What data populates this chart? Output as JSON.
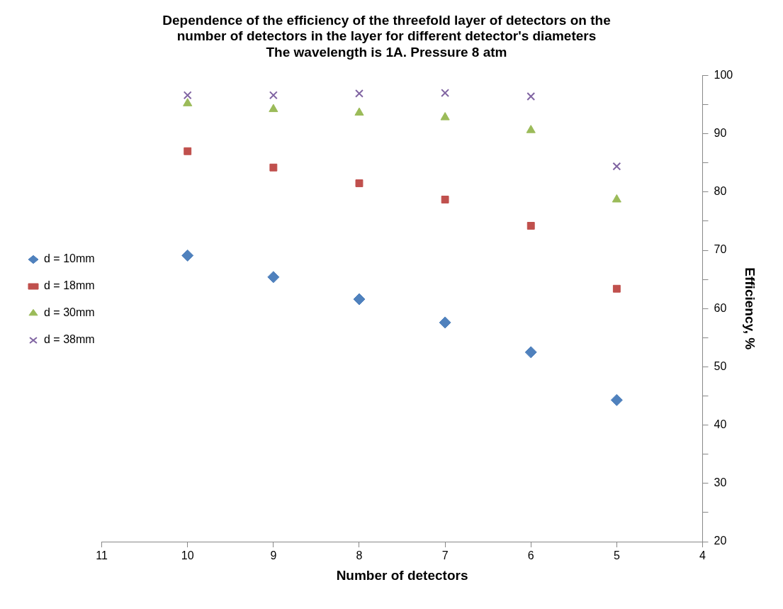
{
  "chart_data": {
    "type": "scatter",
    "title": "Dependence of the efficiency of the threefold layer of detectors on the\nnumber of detectors in the layer for different detector's diameters\nThe wavelength is 1A. Pressure 8 atm",
    "xlabel": "Number of detectors",
    "ylabel": "Efficiency, %",
    "x": [
      10,
      9,
      8,
      7,
      6,
      5
    ],
    "series": [
      {
        "name": "d = 10mm",
        "color": "#4f81bd",
        "marker": "diamond",
        "values": [
          69.1,
          65.4,
          61.6,
          57.6,
          52.5,
          44.3
        ]
      },
      {
        "name": "d = 18mm",
        "color": "#c0504d",
        "marker": "square",
        "values": [
          87.0,
          84.2,
          81.5,
          78.7,
          74.2,
          63.4
        ]
      },
      {
        "name": "d = 30mm",
        "color": "#9bbb59",
        "marker": "triangle",
        "values": [
          95.2,
          94.2,
          93.6,
          92.8,
          90.6,
          78.7
        ]
      },
      {
        "name": "d = 38mm",
        "color": "#8064a2",
        "marker": "cross",
        "values": [
          96.6,
          96.6,
          96.9,
          97.0,
          96.4,
          84.4
        ]
      }
    ],
    "xlim": [
      11,
      4
    ],
    "xticks": [
      11,
      10,
      9,
      8,
      7,
      6,
      5,
      4
    ],
    "ylim": [
      20,
      100
    ],
    "yticks": [
      20,
      {
        "value": 25,
        "label": null
      },
      30,
      {
        "value": 35,
        "label": null
      },
      40,
      {
        "value": 45,
        "label": null
      },
      50,
      {
        "value": 55,
        "label": null
      },
      60,
      {
        "value": 65,
        "label": null
      },
      70,
      {
        "value": 75,
        "label": null
      },
      80,
      {
        "value": 85,
        "label": null
      },
      90,
      {
        "value": 95,
        "label": null
      },
      100
    ],
    "grid": false,
    "legend": "left"
  }
}
